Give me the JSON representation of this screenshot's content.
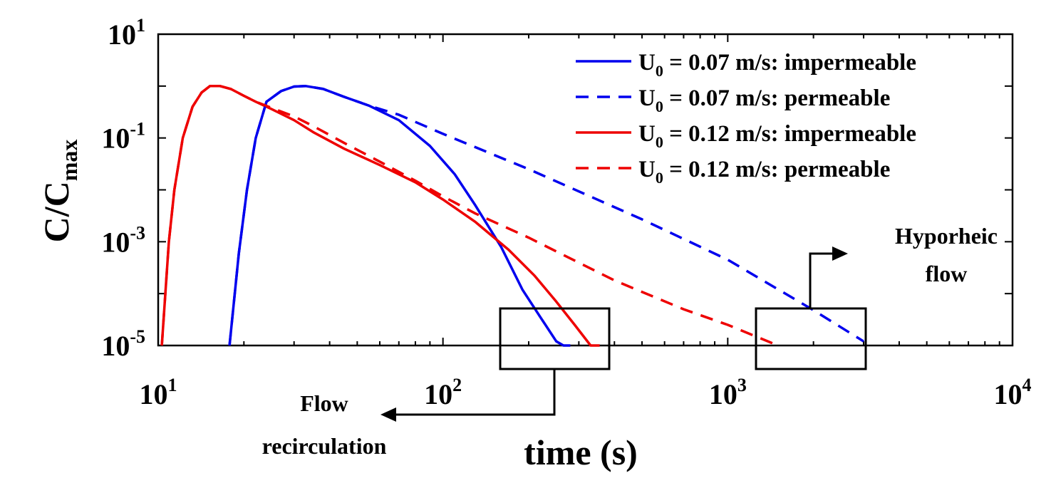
{
  "chart_data": {
    "type": "line",
    "xlabel": "time (s)",
    "ylabel": {
      "base": "C/C",
      "sub": "max"
    },
    "x_scale": "log",
    "y_scale": "log",
    "xlim": [
      10,
      10000
    ],
    "ylim": [
      1e-05,
      10
    ],
    "x_ticks": [
      {
        "value": 10,
        "base": "10",
        "exp": "1"
      },
      {
        "value": 100,
        "base": "10",
        "exp": "2"
      },
      {
        "value": 1000,
        "base": "10",
        "exp": "3"
      },
      {
        "value": 10000,
        "base": "10",
        "exp": "4"
      }
    ],
    "y_ticks": [
      {
        "value": 10,
        "base": "10",
        "exp": "1"
      },
      {
        "value": 0.1,
        "base": "10",
        "exp": "-1"
      },
      {
        "value": 0.001,
        "base": "10",
        "exp": "-3"
      },
      {
        "value": 1e-05,
        "base": "10",
        "exp": "-5"
      }
    ],
    "grid": false,
    "legend_position": "top-right",
    "series": [
      {
        "name": "U0 = 0.07 m/s: impermeable",
        "legend": {
          "pre": "U",
          "sub": "0",
          "post": " = 0.07 m/s: impermeable"
        },
        "color": "#0000ee",
        "dash": false,
        "x": [
          17.8,
          19.2,
          20.5,
          22,
          24,
          27,
          30,
          33,
          38,
          45,
          55,
          70,
          90,
          110,
          130,
          160,
          190,
          220,
          250,
          265,
          280
        ],
        "y": [
          1e-05,
          0.0006,
          0.01,
          0.1,
          0.5,
          0.8,
          0.98,
          1.0,
          0.88,
          0.62,
          0.42,
          0.22,
          0.07,
          0.02,
          0.005,
          0.0008,
          0.00012,
          3.5e-05,
          1.2e-05,
          1e-05,
          1e-05
        ]
      },
      {
        "name": "U0 = 0.07 m/s: permeable",
        "legend": {
          "pre": "U",
          "sub": "0",
          "post": " = 0.07 m/s: permeable"
        },
        "color": "#0000ee",
        "dash": true,
        "x": [
          17.8,
          19.2,
          20.5,
          22,
          24,
          27,
          30,
          33,
          38,
          45,
          55,
          70,
          100,
          200,
          500,
          1000,
          2000,
          3000
        ],
        "y": [
          1e-05,
          0.0006,
          0.01,
          0.1,
          0.5,
          0.8,
          0.98,
          1.0,
          0.88,
          0.62,
          0.42,
          0.28,
          0.12,
          0.025,
          0.0027,
          0.00045,
          4.8e-05,
          1.2e-05
        ]
      },
      {
        "name": "U0 = 0.12 m/s: impermeable",
        "legend": {
          "pre": "U",
          "sub": "0",
          "post": " = 0.12 m/s: impermeable"
        },
        "color": "#ee0000",
        "dash": false,
        "x": [
          10.3,
          10.9,
          11.4,
          12.2,
          13.2,
          14.2,
          15.2,
          16.5,
          18,
          20,
          22,
          25,
          30,
          35,
          45,
          60,
          80,
          100,
          130,
          170,
          210,
          250,
          290,
          330,
          355
        ],
        "y": [
          1e-05,
          0.001,
          0.01,
          0.1,
          0.4,
          0.75,
          1.0,
          1.0,
          0.88,
          0.65,
          0.5,
          0.36,
          0.22,
          0.13,
          0.062,
          0.03,
          0.014,
          0.0065,
          0.0024,
          0.0007,
          0.00022,
          7e-05,
          2.5e-05,
          1e-05,
          1e-05
        ]
      },
      {
        "name": "U0 = 0.12 m/s: permeable",
        "legend": {
          "pre": "U",
          "sub": "0",
          "post": " = 0.12 m/s: permeable"
        },
        "color": "#ee0000",
        "dash": true,
        "x": [
          10.3,
          10.9,
          11.4,
          12.2,
          13.2,
          14.2,
          15.2,
          16.5,
          18,
          20,
          22,
          25,
          30,
          35,
          45,
          60,
          80,
          100,
          130,
          200,
          400,
          700,
          1000,
          1500
        ],
        "y": [
          1e-05,
          0.001,
          0.01,
          0.1,
          0.4,
          0.75,
          1.0,
          1.0,
          0.88,
          0.65,
          0.5,
          0.38,
          0.26,
          0.17,
          0.08,
          0.035,
          0.015,
          0.0075,
          0.0035,
          0.0012,
          0.00018,
          5e-05,
          2.5e-05,
          1e-05
        ]
      }
    ],
    "annotations": [
      {
        "id": "flow-recirculation",
        "lines": [
          "Flow",
          "recirculation"
        ]
      },
      {
        "id": "hyporheic-flow",
        "lines": [
          "Hyporheic",
          "flow"
        ]
      }
    ]
  }
}
